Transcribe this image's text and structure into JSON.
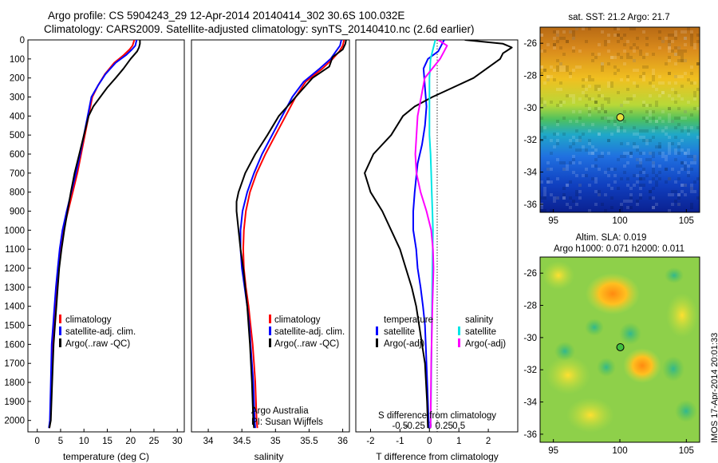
{
  "header": {
    "line1": "Argo profile: CS 5904243_29 12-Apr-2014 20140414_302 30.6S 100.032E",
    "line2": "Climatology: CARS2009. Satellite-adjusted climatology: synTS_20140410.nc (2.6d earlier)"
  },
  "stamp": "IMOS 17-Apr-2014 20:01:33",
  "colors": {
    "climatology": "#ff0000",
    "satellite_adj": "#0000ff",
    "argo": "#000000",
    "salinity_satellite": "#00e5e5",
    "salinity_argo": "#ff00ff"
  },
  "chart_data": [
    {
      "type": "line",
      "xlabel": "temperature (deg C)",
      "xlim": [
        -2,
        31.5
      ],
      "xticks": [
        "0",
        "5",
        "10",
        "15",
        "20",
        "25",
        "30"
      ],
      "xtick_values": [
        0,
        5,
        10,
        15,
        20,
        25,
        30
      ],
      "ylim": [
        2060,
        0
      ],
      "yticks": [
        "0",
        "100",
        "200",
        "300",
        "400",
        "500",
        "600",
        "700",
        "800",
        "900",
        "1000",
        "1100",
        "1200",
        "1300",
        "1400",
        "1500",
        "1600",
        "1700",
        "1800",
        "1900",
        "2000"
      ],
      "ytick_values": [
        0,
        100,
        200,
        300,
        400,
        500,
        600,
        700,
        800,
        900,
        1000,
        1100,
        1200,
        1300,
        1400,
        1500,
        1600,
        1700,
        1800,
        1900,
        2000
      ],
      "legend": [
        "climatology",
        "satellite-adj. clim.",
        "Argo(..raw -QC)"
      ],
      "legend_placement": "center",
      "series": [
        {
          "name": "climatology",
          "color": "#ff0000",
          "x": [
            20.8,
            20.4,
            19.8,
            18.5,
            16.5,
            14.5,
            13.0,
            11.8,
            11.0,
            10.2,
            9.4,
            8.6,
            7.6,
            6.6,
            5.6,
            5.0,
            4.6,
            4.2,
            3.8,
            3.5,
            3.2,
            3.0,
            2.8,
            2.6
          ],
          "y": [
            0,
            30,
            50,
            80,
            120,
            180,
            240,
            300,
            400,
            500,
            600,
            700,
            800,
            900,
            1000,
            1100,
            1200,
            1300,
            1400,
            1500,
            1600,
            1800,
            2000,
            2040
          ]
        },
        {
          "name": "satellite-adj. clim.",
          "color": "#0000ff",
          "x": [
            21.3,
            21.0,
            20.3,
            19.0,
            16.8,
            14.6,
            13.0,
            11.6,
            10.8,
            10.0,
            9.2,
            8.3,
            7.3,
            6.3,
            5.4,
            4.8,
            4.4,
            4.0,
            3.7,
            3.4,
            3.1,
            2.9,
            2.7,
            2.5
          ],
          "y": [
            0,
            30,
            50,
            80,
            120,
            180,
            240,
            300,
            400,
            500,
            600,
            700,
            800,
            900,
            1000,
            1100,
            1200,
            1300,
            1400,
            1500,
            1600,
            1800,
            2000,
            2040
          ]
        },
        {
          "name": "Argo(..raw -QC)",
          "color": "#000000",
          "x": [
            22.0,
            22.0,
            21.8,
            21.4,
            20.0,
            18.5,
            16.8,
            15.0,
            13.5,
            12.0,
            11.0,
            10.0,
            9.0,
            8.0,
            7.2,
            6.5,
            5.8,
            5.2,
            4.7,
            4.4,
            4.1,
            3.8,
            3.5,
            3.2,
            2.9,
            2.6
          ],
          "y": [
            0,
            20,
            40,
            60,
            100,
            150,
            200,
            250,
            300,
            350,
            400,
            500,
            600,
            700,
            800,
            900,
            1000,
            1100,
            1200,
            1300,
            1400,
            1500,
            1600,
            1800,
            2000,
            2040
          ]
        }
      ]
    },
    {
      "type": "line",
      "xlabel": "salinity",
      "xlim": [
        33.75,
        36.1
      ],
      "xticks": [
        "34",
        "34.5",
        "35",
        "35.5",
        "36"
      ],
      "xtick_values": [
        34,
        34.5,
        35,
        35.5,
        36
      ],
      "ylim": [
        2060,
        0
      ],
      "legend": [
        "climatology",
        "satellite-adj. clim.",
        "Argo(..raw -QC)"
      ],
      "legend_placement": "center-right",
      "annotations": [
        "Argo Australia",
        "PI: Susan Wijffels"
      ],
      "series": [
        {
          "name": "climatology",
          "color": "#ff0000",
          "x": [
            36.02,
            36.0,
            35.95,
            35.85,
            35.7,
            35.45,
            35.3,
            35.15,
            35.0,
            34.85,
            34.72,
            34.62,
            34.56,
            34.53,
            34.52,
            34.53,
            34.56,
            34.6,
            34.63,
            34.66,
            34.68,
            34.7,
            34.72,
            34.73
          ],
          "y": [
            0,
            30,
            60,
            100,
            150,
            220,
            300,
            400,
            500,
            600,
            700,
            800,
            900,
            1000,
            1100,
            1200,
            1300,
            1400,
            1500,
            1600,
            1700,
            1800,
            2000,
            2040
          ]
        },
        {
          "name": "satellite-adj. clim.",
          "color": "#0000ff",
          "x": [
            35.98,
            35.96,
            35.9,
            35.82,
            35.66,
            35.42,
            35.25,
            35.1,
            34.95,
            34.8,
            34.68,
            34.58,
            34.51,
            34.48,
            34.48,
            34.5,
            34.54,
            34.58,
            34.61,
            34.63,
            34.65,
            34.67,
            34.69,
            34.7
          ],
          "y": [
            0,
            30,
            60,
            100,
            150,
            220,
            300,
            400,
            500,
            600,
            700,
            800,
            900,
            1000,
            1100,
            1200,
            1300,
            1400,
            1500,
            1600,
            1700,
            1800,
            2000,
            2040
          ]
        },
        {
          "name": "Argo(..raw -QC)",
          "color": "#000000",
          "x": [
            36.05,
            36.04,
            36.0,
            35.85,
            35.8,
            35.55,
            35.4,
            35.25,
            35.05,
            34.88,
            34.7,
            34.55,
            34.45,
            34.42,
            34.42,
            34.45,
            34.48,
            34.52,
            34.55,
            34.58,
            34.6,
            34.62,
            34.65,
            34.67,
            34.68
          ],
          "y": [
            0,
            20,
            50,
            90,
            140,
            200,
            260,
            320,
            400,
            500,
            600,
            700,
            800,
            850,
            900,
            1000,
            1100,
            1200,
            1300,
            1400,
            1500,
            1600,
            1800,
            2000,
            2040
          ]
        }
      ]
    },
    {
      "type": "line",
      "xlabel": "T difference from climatology",
      "x2label": "S difference from climatology",
      "xlim": [
        -2.5,
        3
      ],
      "xticks": [
        "-2",
        "-1",
        "0",
        "1",
        "2"
      ],
      "xtick_values": [
        -2,
        -1,
        0,
        1,
        2
      ],
      "x2ticks": [
        "-0.5",
        "-0.25",
        "0",
        "0.25",
        "0.5"
      ],
      "x2tick_values": [
        -0.5,
        -0.25,
        0,
        0.25,
        0.5
      ],
      "ylim": [
        2060,
        0
      ],
      "legend_groups": [
        {
          "title": "temperature",
          "items": [
            "satellite",
            "Argo(-adj)"
          ]
        },
        {
          "title": "salinity",
          "items": [
            "satellite",
            "Argo(-adj)"
          ]
        }
      ],
      "legend_placement": "lower-center",
      "series": [
        {
          "name": "T satellite",
          "color": "#0000ff",
          "x": [
            0.5,
            0.4,
            0.3,
            -0.05,
            -0.2,
            -0.15,
            -0.1,
            -0.15,
            -0.25,
            -0.4,
            -0.5,
            -0.55,
            -0.55,
            -0.45,
            -0.4,
            -0.3,
            -0.22,
            -0.15,
            -0.1,
            -0.05,
            -0.02
          ],
          "y": [
            0,
            30,
            60,
            100,
            150,
            250,
            350,
            450,
            550,
            650,
            800,
            900,
            1000,
            1100,
            1200,
            1300,
            1400,
            1500,
            1700,
            1900,
            2040
          ]
        },
        {
          "name": "T Argo(-adj)",
          "color": "#000000",
          "x": [
            1.2,
            2.5,
            2.8,
            2.5,
            2.4,
            1.5,
            0.8,
            0.1,
            -0.5,
            -0.9,
            -1.3,
            -1.9,
            -2.2,
            -2.0,
            -1.6,
            -1.3,
            -1.0,
            -0.8,
            -0.6,
            -0.45,
            -0.35,
            -0.25,
            -0.15,
            -0.08,
            -0.05
          ],
          "y": [
            0,
            20,
            40,
            70,
            100,
            200,
            250,
            300,
            350,
            400,
            500,
            600,
            700,
            800,
            900,
            1000,
            1100,
            1200,
            1300,
            1400,
            1500,
            1600,
            1700,
            1900,
            2040
          ]
        },
        {
          "name": "S satellite",
          "color": "#00e5e5",
          "x": [
            0.1,
            0.06,
            0.02,
            0.0,
            0.0,
            0.0,
            0.0,
            0.02,
            0.03,
            0.04,
            0.05,
            0.06,
            0.05,
            0.04,
            0.03,
            0.02
          ],
          "y": [
            0,
            50,
            100,
            200,
            300,
            400,
            500,
            600,
            700,
            800,
            900,
            1000,
            1200,
            1500,
            1800,
            2040
          ]
        },
        {
          "name": "S Argo(-adj)",
          "color": "#ff00ff",
          "x": [
            0.15,
            0.3,
            0.25,
            0.18,
            0.05,
            -0.08,
            -0.2,
            -0.24,
            -0.22,
            -0.15,
            -0.05,
            0.03,
            0.06,
            0.07,
            0.05,
            0.03,
            0.02
          ],
          "y": [
            0,
            30,
            60,
            100,
            150,
            200,
            400,
            600,
            700,
            800,
            900,
            1000,
            1100,
            1200,
            1400,
            1700,
            2040
          ]
        }
      ]
    },
    {
      "type": "heatmap",
      "title": "sat. SST: 21.2 Argo: 21.7",
      "xlim": [
        94,
        106
      ],
      "ylim": [
        -36.5,
        -25
      ],
      "xticks": [
        "95",
        "100",
        "105"
      ],
      "xtick_values": [
        95,
        100,
        105
      ],
      "yticks": [
        "-26",
        "-28",
        "-30",
        "-32",
        "-34",
        "-36"
      ],
      "ytick_values": [
        -26,
        -28,
        -30,
        -32,
        -34,
        -36
      ],
      "marker": {
        "x": 100.032,
        "y": -30.6
      }
    },
    {
      "type": "heatmap",
      "title_lines": [
        "Altim. SLA: 0.019",
        "Argo h1000: 0.071 h2000: 0.011"
      ],
      "xlim": [
        94,
        106
      ],
      "ylim": [
        -36.5,
        -25
      ],
      "xticks": [
        "95",
        "100",
        "105"
      ],
      "xtick_values": [
        95,
        100,
        105
      ],
      "yticks": [
        "-26",
        "-28",
        "-30",
        "-32",
        "-34",
        "-36"
      ],
      "ytick_values": [
        -26,
        -28,
        -30,
        -32,
        -34,
        -36
      ],
      "marker": {
        "x": 100.032,
        "y": -30.6
      }
    }
  ]
}
